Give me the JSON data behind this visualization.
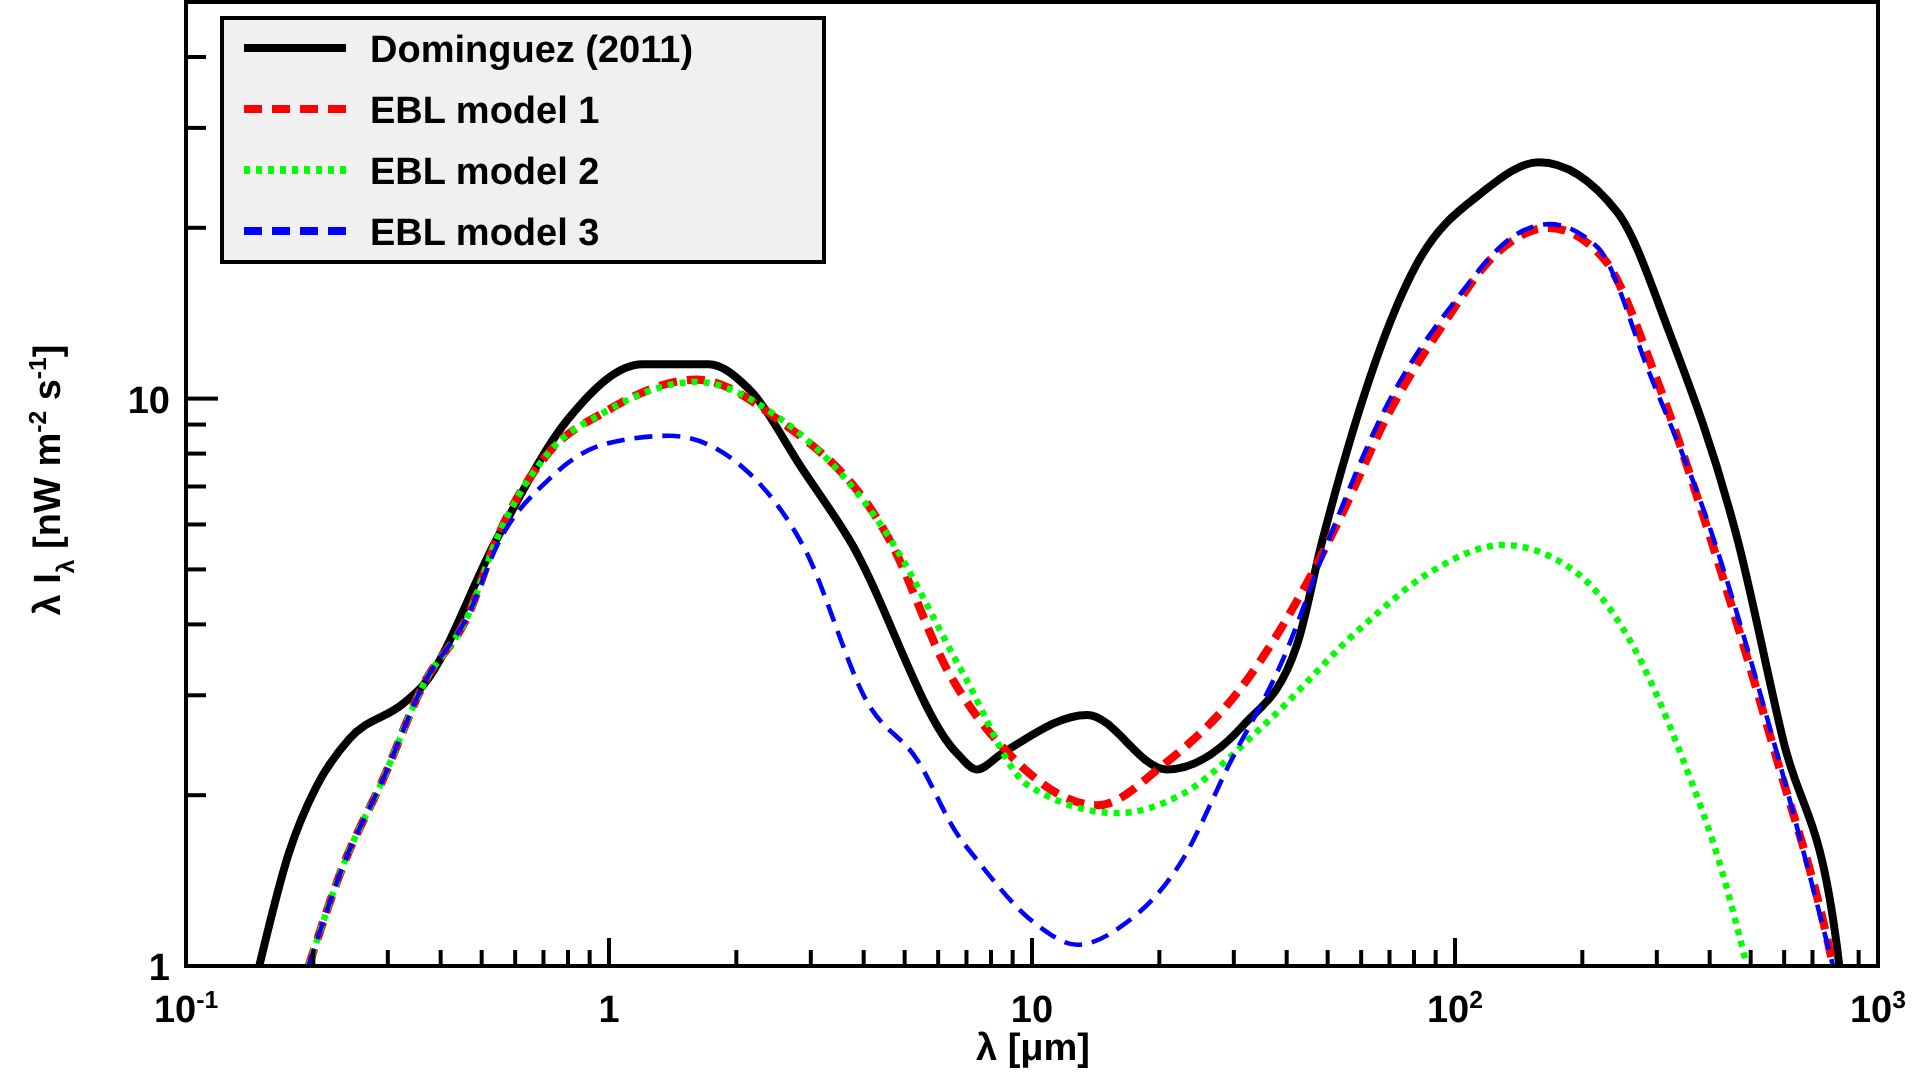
{
  "chart_data": {
    "type": "line",
    "xlabel": "λ [μm]",
    "ylabel": "λ I$_{λ}$ [nW m$^{-2}$ s$^{-1}$]",
    "log": "xy",
    "xlim": [
      0.1,
      1000
    ],
    "ylim": [
      1,
      50
    ],
    "xticks": [
      {
        "value": 0.1,
        "label": "10$^{-1}$"
      },
      {
        "value": 0.2,
        "label": null
      },
      {
        "value": 0.3,
        "label": null
      },
      {
        "value": 0.4,
        "label": null
      },
      {
        "value": 0.5,
        "label": null
      },
      {
        "value": 0.6,
        "label": null
      },
      {
        "value": 0.7,
        "label": null
      },
      {
        "value": 0.8,
        "label": null
      },
      {
        "value": 0.9,
        "label": null
      },
      1,
      {
        "value": 2,
        "label": null
      },
      {
        "value": 3,
        "label": null
      },
      {
        "value": 4,
        "label": null
      },
      {
        "value": 5,
        "label": null
      },
      {
        "value": 6,
        "label": null
      },
      {
        "value": 7,
        "label": null
      },
      {
        "value": 8,
        "label": null
      },
      {
        "value": 9,
        "label": null
      },
      10,
      {
        "value": 20,
        "label": null
      },
      {
        "value": 30,
        "label": null
      },
      {
        "value": 40,
        "label": null
      },
      {
        "value": 50,
        "label": null
      },
      {
        "value": 60,
        "label": null
      },
      {
        "value": 70,
        "label": null
      },
      {
        "value": 80,
        "label": null
      },
      {
        "value": 90,
        "label": null
      },
      {
        "value": 100,
        "label": "10$^{2}$"
      },
      {
        "value": 200,
        "label": null
      },
      {
        "value": 300,
        "label": null
      },
      {
        "value": 400,
        "label": null
      },
      {
        "value": 500,
        "label": null
      },
      {
        "value": 600,
        "label": null
      },
      {
        "value": 700,
        "label": null
      },
      {
        "value": 800,
        "label": null
      },
      {
        "value": 900,
        "label": null
      },
      {
        "value": 1000,
        "label": "10$^{3}$"
      }
    ],
    "yticks": [
      1,
      {
        "value": 2,
        "label": null
      },
      {
        "value": 3,
        "label": null
      },
      {
        "value": 4,
        "label": null
      },
      {
        "value": 5,
        "label": null
      },
      {
        "value": 6,
        "label": null
      },
      {
        "value": 7,
        "label": null
      },
      {
        "value": 8,
        "label": null
      },
      {
        "value": 9,
        "label": null
      },
      10,
      {
        "value": 20,
        "label": null
      },
      {
        "value": 30,
        "label": null
      },
      {
        "value": 40,
        "label": null
      }
    ],
    "grid": false,
    "legend": "top left",
    "marker": "none",
    "series": [
      {
        "name": "Dominguez (2011)",
        "color": "#000000",
        "line_style": "solid",
        "x": [
          0.149,
          0.175,
          0.204,
          0.243,
          0.326,
          0.363,
          0.543,
          0.8,
          1.2,
          1.72,
          2.14,
          2.87,
          3.69,
          6.65,
          7.4,
          8.5,
          13.5,
          20.8,
          31.5,
          42.3,
          48.7,
          81,
          116,
          158,
          242,
          321,
          465,
          596,
          800,
          810
        ],
        "values": [
          1,
          1.58,
          2.08,
          2.51,
          2.9,
          3.12,
          5.66,
          9.2,
          11.5,
          11.5,
          10.4,
          7.5,
          5.66,
          2.37,
          2.22,
          2.37,
          2.77,
          2.22,
          2.65,
          3.68,
          5.66,
          17.2,
          23.1,
          26.1,
          21.3,
          13.1,
          5.66,
          2.51,
          1.08,
          1
        ]
      },
      {
        "name": "EBL model 1",
        "color": "#ff0000",
        "line_style": "dashed",
        "x": [
          0.195,
          0.235,
          0.292,
          0.363,
          0.467,
          0.543,
          0.72,
          0.97,
          1.61,
          2.5,
          4.59,
          6.37,
          8.8,
          14.3,
          20.4,
          31.5,
          45.2,
          52.6,
          69.8,
          93.7,
          126,
          167,
          224,
          300,
          398,
          577,
          766,
          783
        ],
        "values": [
          1,
          1.5,
          2.13,
          3.12,
          4.19,
          5.66,
          8.03,
          9.44,
          10.8,
          9.2,
          5.66,
          3.28,
          2.37,
          1.92,
          2.26,
          3.12,
          4.81,
          6,
          9.44,
          13.5,
          18.1,
          20,
          17.7,
          10.8,
          5.8,
          2.31,
          1.08,
          1
        ]
      },
      {
        "name": "EBL model 2",
        "color": "#00ff00",
        "line_style": "dotted",
        "x": [
          0.195,
          0.235,
          0.292,
          0.363,
          0.467,
          0.543,
          0.72,
          0.97,
          1.61,
          2.5,
          4.59,
          6.87,
          9.8,
          15.9,
          22.7,
          35.2,
          60.7,
          86.9,
          130,
          194,
          258,
          346,
          430,
          490
        ],
        "values": [
          1,
          1.5,
          2.13,
          3.12,
          4.19,
          5.66,
          8.03,
          9.44,
          10.7,
          9.3,
          5.7,
          3.28,
          2.08,
          1.86,
          2.01,
          2.65,
          3.98,
          4.93,
          5.52,
          4.93,
          3.77,
          2.31,
          1.45,
          1
        ]
      },
      {
        "name": "EBL model 3",
        "color": "#0000ff",
        "line_style": "dashed",
        "x": [
          0.195,
          0.235,
          0.292,
          0.363,
          0.467,
          0.543,
          0.72,
          0.97,
          1.39,
          2.14,
          2.87,
          4.12,
          5.35,
          6.65,
          7.4,
          10.3,
          12.8,
          16.4,
          22.7,
          29.2,
          39.2,
          50.4,
          67.6,
          101,
          140,
          167,
          217,
          288,
          398,
          577,
          783
        ],
        "values": [
          1,
          1.5,
          2.13,
          3.12,
          4.19,
          5.5,
          7.2,
          8.3,
          8.6,
          7.4,
          5.52,
          2.88,
          2.31,
          1.71,
          1.54,
          1.18,
          1.09,
          1.18,
          1.54,
          2.26,
          3.47,
          5.66,
          9.44,
          15,
          19.5,
          20.3,
          18.5,
          11.1,
          6,
          2.37,
          1
        ]
      }
    ]
  }
}
